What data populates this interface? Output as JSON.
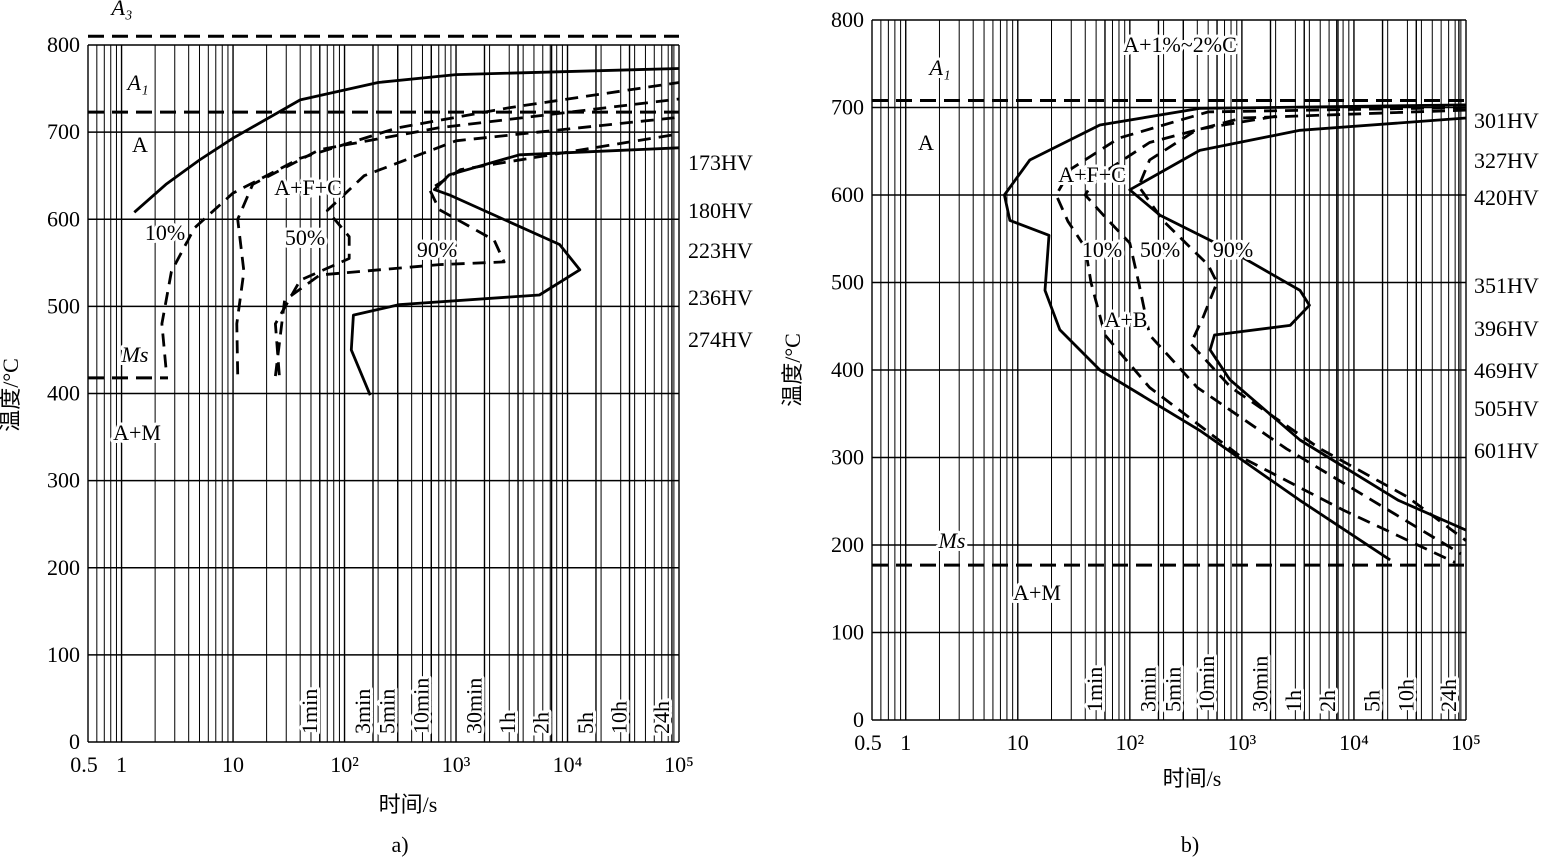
{
  "chart_data": [
    {
      "type": "line",
      "caption": "a)",
      "x_label": "时间/s",
      "y_label": "温度/°C",
      "xscale": "log",
      "xlim": [
        0.5,
        100000
      ],
      "ylim": [
        0,
        800
      ],
      "xticks": [
        0.5,
        1,
        10,
        {
          "value": 100,
          "label": "10²"
        },
        {
          "value": 1000,
          "label": "10³"
        },
        {
          "value": 10000,
          "label": "10⁴"
        },
        {
          "value": 100000,
          "label": "10⁵"
        }
      ],
      "yticks": [
        0,
        100,
        200,
        300,
        400,
        500,
        600,
        700,
        800
      ],
      "minor_xticks": [
        0.6,
        0.7,
        0.8,
        0.9,
        2,
        3,
        4,
        5,
        6,
        7,
        8,
        9,
        20,
        30,
        40,
        50,
        60,
        70,
        80,
        90,
        200,
        300,
        400,
        500,
        600,
        700,
        800,
        900,
        2000,
        3000,
        4000,
        5000,
        6000,
        7000,
        8000,
        9000,
        20000,
        30000,
        40000,
        50000,
        60000,
        70000,
        80000,
        90000
      ],
      "grid": true,
      "time_marks": [
        {
          "value": 60,
          "label": "1min"
        },
        {
          "value": 180,
          "label": "3min"
        },
        {
          "value": 300,
          "label": "5min"
        },
        {
          "value": 600,
          "label": "10min"
        },
        {
          "value": 1800,
          "label": "30min"
        },
        {
          "value": 3600,
          "label": "1h"
        },
        {
          "value": 7200,
          "label": "2h"
        },
        {
          "value": 18000,
          "label": "5h"
        },
        {
          "value": 36000,
          "label": "10h"
        },
        {
          "value": 86400,
          "label": "24h"
        }
      ],
      "ref_lines": [
        {
          "label": "A₃",
          "value": 810
        },
        {
          "label": "A₁",
          "value": 723
        },
        {
          "label": "Ms",
          "value": 418
        }
      ],
      "series": [
        {
          "style": "solid",
          "color": "#000000",
          "x": [
            1.3,
            2.5,
            5,
            10,
            40,
            200,
            1000,
            100000
          ],
          "values": [
            608,
            640,
            668,
            693,
            737,
            757,
            766,
            773
          ]
        },
        {
          "style": "dashed",
          "color": "#000000",
          "x": [
            2.5,
            2.3,
            2.8,
            4.5,
            10,
            40,
            300,
            3000,
            100000
          ],
          "values": [
            430,
            480,
            540,
            590,
            630,
            670,
            705,
            728,
            757
          ]
        },
        {
          "style": "dashed",
          "color": "#000000",
          "x": [
            11,
            10.8,
            12.5,
            11,
            15,
            60,
            700,
            100000
          ],
          "values": [
            422,
            480,
            540,
            600,
            640,
            680,
            705,
            738
          ]
        },
        {
          "style": "dashed",
          "color": "#000000",
          "x": [
            26,
            24,
            40,
            110,
            110,
            70,
            150,
            1000,
            100000
          ],
          "values": [
            421,
            480,
            530,
            555,
            580,
            610,
            650,
            690,
            717
          ]
        },
        {
          "style": "dashed",
          "color": "#000000",
          "x": [
            24,
            29,
            60,
            710,
            2700,
            2200,
            710,
            580,
            1100,
            100000
          ],
          "values": [
            420,
            507,
            536,
            548,
            551,
            576,
            611,
            634,
            657,
            698
          ]
        },
        {
          "style": "solid",
          "color": "#000000",
          "x": [
            170,
            115,
            120,
            310,
            5600,
            12900,
            8500,
            870,
            640,
            870,
            3700,
            100000
          ],
          "values": [
            398,
            450,
            490,
            502,
            513,
            542,
            571,
            628,
            634,
            651,
            674,
            682
          ]
        }
      ],
      "labels": [
        "A",
        "A+F+C",
        "10%",
        "50%",
        "90%",
        "A+M"
      ],
      "hardness_labels": [
        "173HV",
        "180HV",
        "223HV",
        "236HV",
        "274HV"
      ]
    },
    {
      "type": "line",
      "caption": "b)",
      "x_label": "时间/s",
      "y_label": "温度/°C",
      "xscale": "log",
      "xlim": [
        0.5,
        100000
      ],
      "ylim": [
        0,
        800
      ],
      "xticks": [
        0.5,
        1,
        10,
        {
          "value": 100,
          "label": "10²"
        },
        {
          "value": 1000,
          "label": "10³"
        },
        {
          "value": 10000,
          "label": "10⁴"
        },
        {
          "value": 100000,
          "label": "10⁵"
        }
      ],
      "yticks": [
        0,
        100,
        200,
        300,
        400,
        500,
        600,
        700,
        800
      ],
      "minor_xticks": [
        0.6,
        0.7,
        0.8,
        0.9,
        2,
        3,
        4,
        5,
        6,
        7,
        8,
        9,
        20,
        30,
        40,
        50,
        60,
        70,
        80,
        90,
        200,
        300,
        400,
        500,
        600,
        700,
        800,
        900,
        2000,
        3000,
        4000,
        5000,
        6000,
        7000,
        8000,
        9000,
        20000,
        30000,
        40000,
        50000,
        60000,
        70000,
        80000,
        90000
      ],
      "grid": true,
      "time_marks": [
        {
          "value": 60,
          "label": "1min"
        },
        {
          "value": 180,
          "label": "3min"
        },
        {
          "value": 300,
          "label": "5min"
        },
        {
          "value": 600,
          "label": "10min"
        },
        {
          "value": 1800,
          "label": "30min"
        },
        {
          "value": 3600,
          "label": "1h"
        },
        {
          "value": 7200,
          "label": "2h"
        },
        {
          "value": 18000,
          "label": "5h"
        },
        {
          "value": 36000,
          "label": "10h"
        },
        {
          "value": 86400,
          "label": "24h"
        }
      ],
      "ref_lines": [
        {
          "label": "A₁",
          "value": 708
        },
        {
          "label": "Ms",
          "value": 177
        }
      ],
      "series": [
        {
          "style": "solid",
          "color": "#000000",
          "x": [
            100000,
            420,
            54,
            12.8,
            7.6,
            8.5,
            19,
            17.5,
            23.7,
            54,
            420,
            3300,
            21000
          ],
          "values": [
            703,
            699,
            680,
            640,
            600,
            571,
            554,
            491,
            446,
            400,
            331,
            251,
            183
          ]
        },
        {
          "style": "dashed",
          "color": "#000000",
          "x": [
            100000,
            500,
            80,
            30,
            22,
            28,
            40,
            45,
            60,
            150,
            1000,
            8000,
            80000
          ],
          "values": [
            700,
            695,
            665,
            630,
            600,
            570,
            540,
            500,
            440,
            380,
            300,
            240,
            180
          ]
        },
        {
          "style": "dashed",
          "color": "#000000",
          "x": [
            100000,
            1000,
            150,
            50,
            40,
            60,
            100,
            120,
            150,
            400,
            2500,
            15000,
            90000
          ],
          "values": [
            697,
            688,
            660,
            620,
            600,
            575,
            545,
            500,
            440,
            380,
            310,
            250,
            190
          ]
        },
        {
          "style": "dashed",
          "color": "#000000",
          "x": [
            2000,
            400,
            150,
            120,
            200,
            500,
            600,
            450,
            350,
            800,
            5000,
            30000,
            100000
          ],
          "values": [
            690,
            675,
            640,
            610,
            570,
            520,
            500,
            460,
            430,
            380,
            310,
            255,
            205
          ]
        },
        {
          "style": "solid",
          "color": "#000000",
          "x": [
            100000,
            3300,
            420,
            100,
            185,
            780,
            3300,
            4000,
            2700,
            570,
            520,
            780,
            3300,
            25000,
            100000
          ],
          "values": [
            688,
            674,
            651,
            606,
            577,
            537,
            491,
            474,
            451,
            440,
            423,
            389,
            320,
            251,
            217
          ]
        }
      ],
      "labels": [
        "A+1%~2%C",
        "A",
        "A+F+C",
        "10%",
        "50%",
        "90%",
        "A+B",
        "A+M"
      ],
      "hardness_labels": [
        "301HV",
        "327HV",
        "420HV",
        "351HV",
        "396HV",
        "469HV",
        "505HV",
        "601HV"
      ]
    }
  ]
}
